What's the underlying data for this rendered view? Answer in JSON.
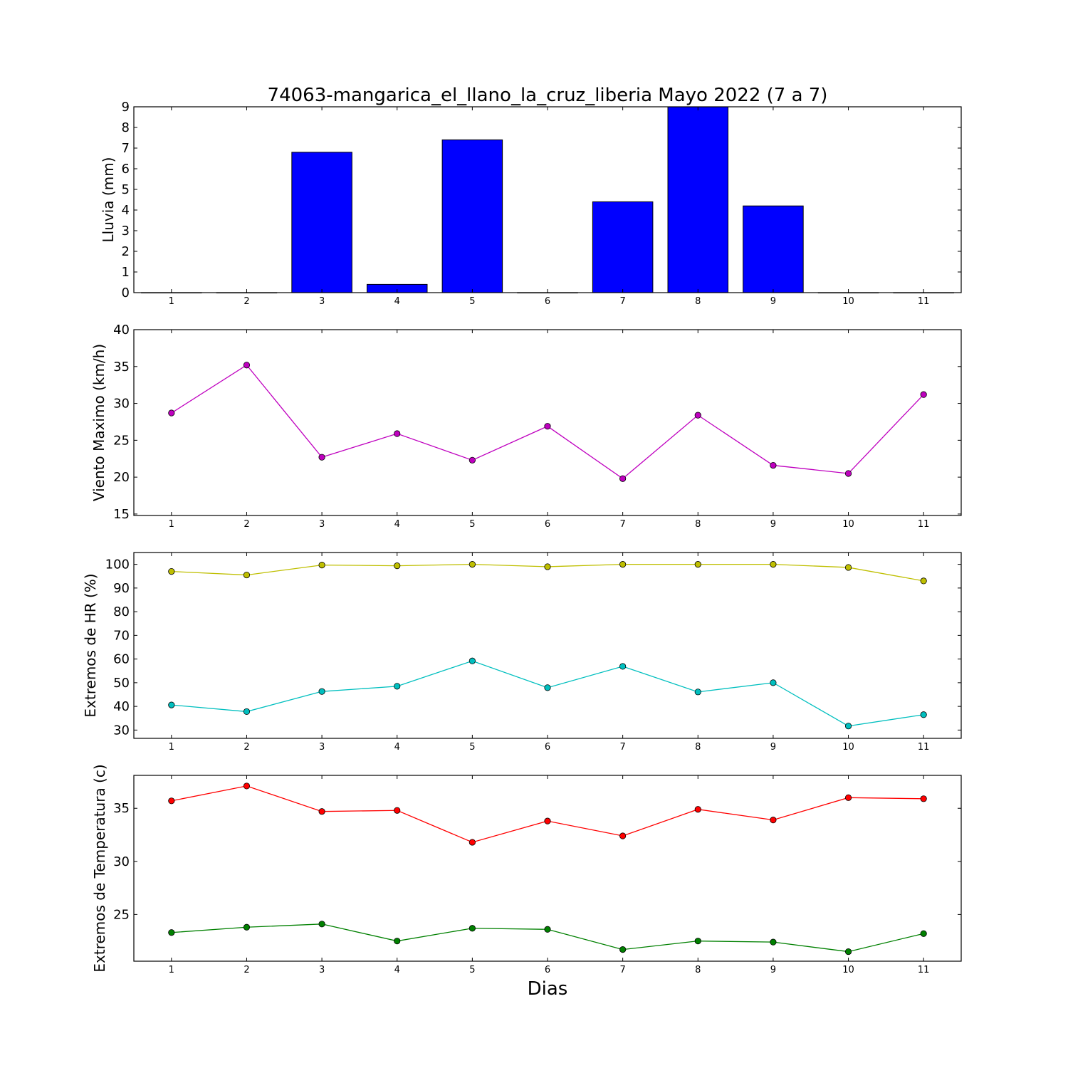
{
  "figure_title": "74063-mangarica_el_llano_la_cruz_liberia Mayo 2022  (7 a 7)",
  "chart_data": [
    {
      "type": "bar",
      "ylabel": "Lluvia (mm)",
      "xlabel": "",
      "categories": [
        1,
        2,
        3,
        4,
        5,
        6,
        7,
        8,
        9,
        10,
        11
      ],
      "x_ticks": [
        "1",
        "2",
        "3",
        "4",
        "5",
        "6",
        "7",
        "8",
        "9",
        "10",
        "11"
      ],
      "xlim": [
        0.5,
        11.5
      ],
      "ylim": [
        0,
        9
      ],
      "y_ticks": [
        "0",
        "1",
        "2",
        "3",
        "4",
        "5",
        "6",
        "7",
        "8",
        "9"
      ],
      "grid": false,
      "series": [
        {
          "values": [
            0,
            0,
            6.8,
            0.4,
            7.4,
            0,
            4.4,
            9.0,
            4.2,
            0,
            0
          ],
          "color": "#0000ff"
        }
      ]
    },
    {
      "type": "line",
      "ylabel": "Viento Maximo (km/h)",
      "xlabel": "",
      "x": [
        1,
        2,
        3,
        4,
        5,
        6,
        7,
        8,
        9,
        10,
        11
      ],
      "x_ticks": [
        "1",
        "2",
        "3",
        "4",
        "5",
        "6",
        "7",
        "8",
        "9",
        "10",
        "11"
      ],
      "xlim": [
        0.5,
        11.5
      ],
      "ylim": [
        14.8,
        40
      ],
      "y_ticks": [
        "15",
        "20",
        "25",
        "30",
        "35",
        "40"
      ],
      "grid": false,
      "series": [
        {
          "values": [
            28.7,
            35.2,
            22.7,
            25.9,
            22.3,
            26.9,
            19.8,
            28.4,
            21.6,
            20.5,
            31.2
          ],
          "color": "#bf00bf"
        }
      ]
    },
    {
      "type": "line",
      "ylabel": "Extremos de HR (%)",
      "xlabel": "",
      "x": [
        1,
        2,
        3,
        4,
        5,
        6,
        7,
        8,
        9,
        10,
        11
      ],
      "x_ticks": [
        "1",
        "2",
        "3",
        "4",
        "5",
        "6",
        "7",
        "8",
        "9",
        "10",
        "11"
      ],
      "xlim": [
        0.5,
        11.5
      ],
      "ylim": [
        26.5,
        105
      ],
      "y_ticks": [
        "30",
        "40",
        "50",
        "60",
        "70",
        "80",
        "90",
        "100"
      ],
      "grid": false,
      "series": [
        {
          "values": [
            97,
            95.5,
            99.7,
            99.4,
            100,
            99,
            100,
            100,
            100,
            98.7,
            93
          ],
          "color": "#bfbf00"
        },
        {
          "values": [
            40.6,
            37.8,
            46.3,
            48.5,
            59.2,
            47.9,
            56.9,
            46.1,
            50,
            31.7,
            36.5
          ],
          "color": "#00bfbf"
        }
      ]
    },
    {
      "type": "line",
      "ylabel": "Extremos de Temperatura (c)",
      "xlabel": "Dias",
      "x": [
        1,
        2,
        3,
        4,
        5,
        6,
        7,
        8,
        9,
        10,
        11
      ],
      "x_ticks": [
        "1",
        "2",
        "3",
        "4",
        "5",
        "6",
        "7",
        "8",
        "9",
        "10",
        "11"
      ],
      "xlim": [
        0.5,
        11.5
      ],
      "ylim": [
        20.6,
        38.1
      ],
      "y_ticks": [
        "25",
        "30",
        "35"
      ],
      "grid": false,
      "series": [
        {
          "values": [
            35.7,
            37.1,
            34.7,
            34.8,
            31.8,
            33.8,
            32.4,
            34.9,
            33.9,
            36.0,
            35.9
          ],
          "color": "#ff0000"
        },
        {
          "values": [
            23.3,
            23.8,
            24.1,
            22.5,
            23.7,
            23.6,
            21.7,
            22.5,
            22.4,
            21.5,
            23.2
          ],
          "color": "#008000"
        }
      ]
    }
  ]
}
